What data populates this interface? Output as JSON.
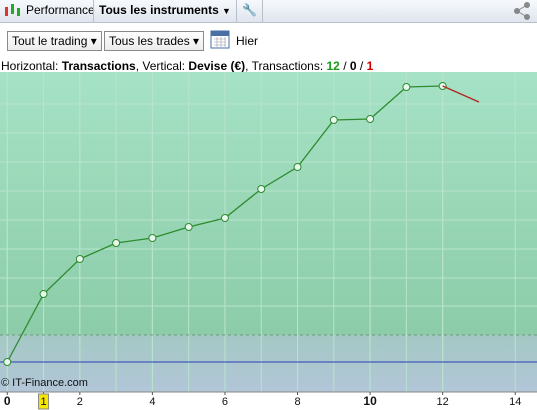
{
  "toolbar": {
    "performance": "Performance",
    "instruments": "Tous les instruments"
  },
  "filters": {
    "trading": "Tout le trading",
    "trades": "Tous les trades",
    "date": "Hier"
  },
  "info": {
    "h_label": "Horizontal: ",
    "h_value": "Transactions",
    "v_label": ", Vertical: ",
    "v_value": "Devise (€)",
    "t_label": ", Transactions: ",
    "wins": 12,
    "sep1": " / ",
    "even": 0,
    "sep2": " / ",
    "losses": 1
  },
  "watermark": "© IT-Finance.com",
  "chart_data": {
    "type": "line",
    "x": [
      0,
      1,
      2,
      3,
      4,
      5,
      6,
      7,
      8,
      9,
      10,
      11,
      12
    ],
    "series": [
      {
        "color": "#2e8b2e",
        "x": [
          0,
          1,
          2,
          3,
          4,
          5,
          6,
          7,
          8,
          9,
          10,
          11,
          12
        ],
        "values": [
          0,
          68,
          103,
          119,
          124,
          135,
          144,
          173,
          195,
          242,
          243,
          275,
          276
        ],
        "markers": true
      },
      {
        "color": "#b22222",
        "x": [
          12,
          13
        ],
        "values": [
          276,
          260
        ],
        "markers": false
      }
    ],
    "xlim": [
      -0.2,
      14.6
    ],
    "ylim": [
      -30,
      290
    ],
    "xticks": [
      0,
      1,
      2,
      4,
      6,
      8,
      10,
      12,
      14
    ],
    "bold_xticks": [
      0,
      10
    ],
    "highlight_xtick": 1,
    "grid": true
  }
}
